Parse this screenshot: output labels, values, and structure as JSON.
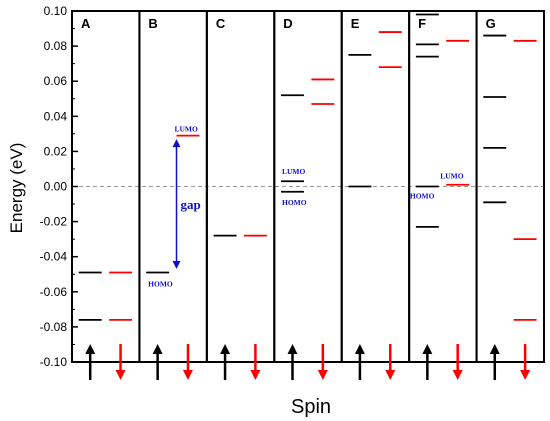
{
  "chart_data": {
    "type": "energy-level diagram",
    "ylabel": "Energy (eV)",
    "xlabel": "Spin",
    "ylim": [
      -0.1,
      0.1
    ],
    "yticks": [
      "0.10",
      "0.08",
      "0.06",
      "0.04",
      "0.02",
      "0.00",
      "-0.02",
      "-0.04",
      "-0.06",
      "-0.08",
      "-0.10"
    ],
    "zero_line": true,
    "colors": {
      "up": "#000000",
      "down": "#ff0000",
      "annotation": "#1010c8",
      "zero_line": "#999999"
    },
    "panels": [
      {
        "label": "A",
        "up": [
          -0.049,
          -0.076
        ],
        "down": [
          -0.049,
          -0.076
        ]
      },
      {
        "label": "B",
        "up": [
          -0.049
        ],
        "down": [
          0.029
        ],
        "annotations": [
          {
            "text": "LUMO",
            "at_level": 0.029
          },
          {
            "text": "HOMO",
            "at_level": -0.049
          },
          {
            "text": "gap",
            "arrow_from": -0.047,
            "arrow_to": 0.027
          }
        ]
      },
      {
        "label": "C",
        "up": [
          -0.028
        ],
        "down": [
          -0.028
        ]
      },
      {
        "label": "D",
        "up": [
          0.052,
          0.003,
          -0.003
        ],
        "down": [
          0.061,
          0.047
        ],
        "annotations": [
          {
            "text": "LUMO",
            "at_level": 0.003
          },
          {
            "text": "HOMO",
            "at_level": -0.003
          }
        ]
      },
      {
        "label": "E",
        "up": [
          0.075,
          0.0
        ],
        "down": [
          0.088,
          0.068
        ]
      },
      {
        "label": "F",
        "up": [
          0.098,
          0.081,
          0.074,
          0.0,
          -0.023
        ],
        "down": [
          0.083,
          0.001
        ],
        "annotations": [
          {
            "text": "LUMO",
            "at_level": 0.001
          },
          {
            "text": "HOMO",
            "at_level": 0.0
          }
        ]
      },
      {
        "label": "G",
        "up": [
          0.086,
          0.051,
          0.022,
          -0.009
        ],
        "down": [
          0.083,
          -0.03,
          -0.076
        ]
      }
    ]
  }
}
